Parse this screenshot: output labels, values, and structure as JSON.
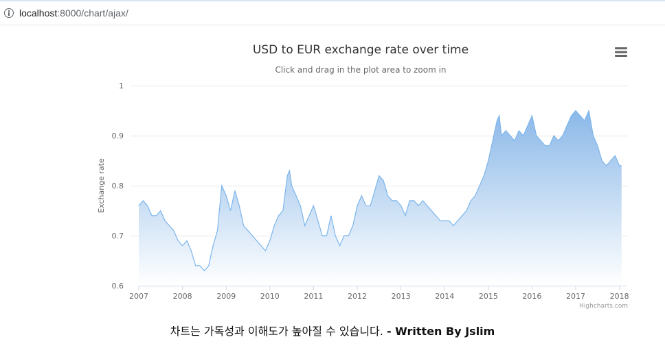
{
  "browser": {
    "url_host": "localhost",
    "url_path": ":8000/chart/ajax/"
  },
  "chart_data": {
    "type": "area",
    "title": "USD to EUR exchange rate over time",
    "subtitle": "Click and drag in the plot area to zoom in",
    "xlabel": "",
    "ylabel": "Exchange rate",
    "ylim": [
      0.6,
      1.0
    ],
    "xlim": [
      2007.0,
      2018.1
    ],
    "y_ticks": [
      "0.6",
      "0.7",
      "0.8",
      "0.9",
      "1"
    ],
    "x_ticks": [
      "2007",
      "2008",
      "2009",
      "2010",
      "2011",
      "2012",
      "2013",
      "2014",
      "2015",
      "2016",
      "2017",
      "2018"
    ],
    "credits": "Highcharts.com",
    "grid": true,
    "legend": "none",
    "colors": {
      "line": "#7cb5ec",
      "fill_top": "#8ab8e8",
      "fill_bottom": "#ffffff",
      "grid": "#e6e6e6"
    },
    "series": [
      {
        "x": [
          2007.0,
          2007.1,
          2007.2,
          2007.3,
          2007.4,
          2007.5,
          2007.6,
          2007.7,
          2007.8,
          2007.9,
          2008.0,
          2008.1,
          2008.2,
          2008.3,
          2008.4,
          2008.5,
          2008.6,
          2008.7,
          2008.8,
          2008.9,
          2009.0,
          2009.1,
          2009.2,
          2009.3,
          2009.4,
          2009.5,
          2009.6,
          2009.7,
          2009.8,
          2009.9,
          2010.0,
          2010.1,
          2010.2,
          2010.3,
          2010.4,
          2010.45,
          2010.5,
          2010.6,
          2010.7,
          2010.8,
          2010.9,
          2011.0,
          2011.1,
          2011.2,
          2011.3,
          2011.4,
          2011.5,
          2011.6,
          2011.7,
          2011.8,
          2011.9,
          2012.0,
          2012.1,
          2012.2,
          2012.3,
          2012.4,
          2012.5,
          2012.6,
          2012.7,
          2012.8,
          2012.9,
          2013.0,
          2013.1,
          2013.2,
          2013.3,
          2013.4,
          2013.5,
          2013.6,
          2013.7,
          2013.8,
          2013.9,
          2014.0,
          2014.1,
          2014.2,
          2014.3,
          2014.4,
          2014.5,
          2014.6,
          2014.7,
          2014.8,
          2014.9,
          2015.0,
          2015.1,
          2015.2,
          2015.25,
          2015.3,
          2015.4,
          2015.5,
          2015.6,
          2015.7,
          2015.8,
          2015.9,
          2016.0,
          2016.1,
          2016.2,
          2016.3,
          2016.4,
          2016.5,
          2016.6,
          2016.7,
          2016.8,
          2016.9,
          2017.0,
          2017.1,
          2017.2,
          2017.3,
          2017.4,
          2017.5,
          2017.6,
          2017.7,
          2017.8,
          2017.9,
          2018.0,
          2018.05
        ],
        "y": [
          0.76,
          0.77,
          0.76,
          0.74,
          0.74,
          0.75,
          0.73,
          0.72,
          0.71,
          0.69,
          0.68,
          0.69,
          0.67,
          0.64,
          0.64,
          0.63,
          0.64,
          0.68,
          0.71,
          0.8,
          0.78,
          0.75,
          0.79,
          0.76,
          0.72,
          0.71,
          0.7,
          0.69,
          0.68,
          0.67,
          0.69,
          0.72,
          0.74,
          0.75,
          0.82,
          0.83,
          0.8,
          0.78,
          0.76,
          0.72,
          0.74,
          0.76,
          0.73,
          0.7,
          0.7,
          0.74,
          0.7,
          0.68,
          0.7,
          0.7,
          0.72,
          0.76,
          0.78,
          0.76,
          0.76,
          0.79,
          0.82,
          0.81,
          0.78,
          0.77,
          0.77,
          0.76,
          0.74,
          0.77,
          0.77,
          0.76,
          0.77,
          0.76,
          0.75,
          0.74,
          0.73,
          0.73,
          0.73,
          0.72,
          0.73,
          0.74,
          0.75,
          0.77,
          0.78,
          0.8,
          0.82,
          0.85,
          0.89,
          0.93,
          0.94,
          0.9,
          0.91,
          0.9,
          0.89,
          0.91,
          0.9,
          0.92,
          0.94,
          0.9,
          0.89,
          0.88,
          0.88,
          0.9,
          0.89,
          0.9,
          0.92,
          0.94,
          0.95,
          0.94,
          0.93,
          0.95,
          0.9,
          0.88,
          0.85,
          0.84,
          0.85,
          0.86,
          0.84,
          0.84
        ]
      }
    ]
  },
  "footer": {
    "caption_text": "차트는 가독성과 이해도가 높아질 수 있습니다. ",
    "caption_bold": "- Written By Jslim"
  }
}
